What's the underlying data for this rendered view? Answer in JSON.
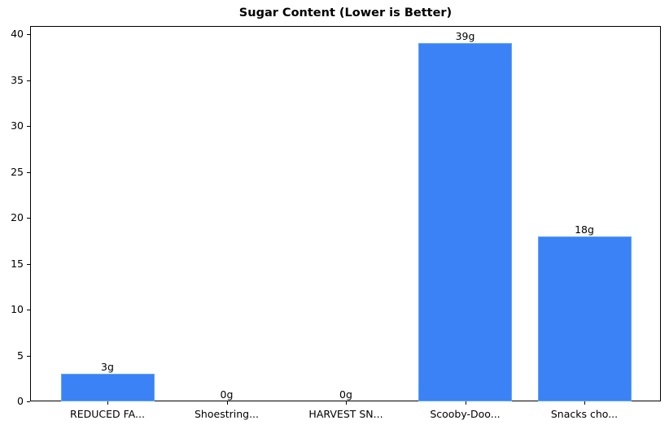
{
  "chart_data": {
    "type": "bar",
    "title": "Sugar Content (Lower is Better)",
    "xlabel": "",
    "ylabel": "",
    "categories": [
      "REDUCED FA...",
      "Shoestring...",
      "HARVEST SN...",
      "Scooby-Doo...",
      "Snacks cho..."
    ],
    "values": [
      3,
      0,
      0,
      39,
      18
    ],
    "value_labels": [
      "3g",
      "0g",
      "0g",
      "39g",
      "18g"
    ],
    "ylim": [
      0,
      40.95
    ],
    "yticks": [
      0,
      5,
      10,
      15,
      20,
      25,
      30,
      35,
      40
    ],
    "grid": false,
    "legend": null,
    "bar_color": "#3b82f6",
    "bar_edge_color": "#60a5fa"
  }
}
